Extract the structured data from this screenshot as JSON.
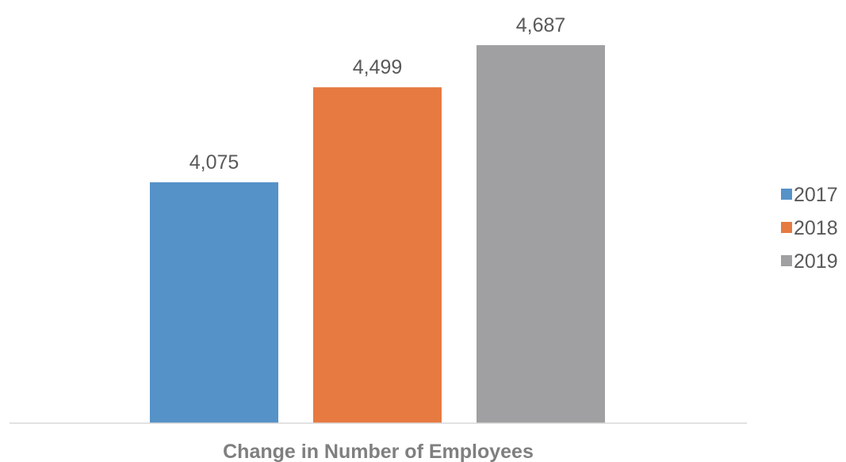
{
  "chart_data": {
    "type": "bar",
    "categories": [
      "Change in Number of Employees"
    ],
    "series": [
      {
        "name": "2017",
        "values": [
          4075
        ],
        "label": "4,075",
        "color": "#5592c8"
      },
      {
        "name": "2018",
        "values": [
          4499
        ],
        "label": "4,499",
        "color": "#e67a41"
      },
      {
        "name": "2019",
        "values": [
          4687
        ],
        "label": "4,687",
        "color": "#a0a0a3"
      }
    ],
    "title": "",
    "xlabel": "",
    "ylabel": "",
    "ylim": [
      3000,
      4800
    ],
    "grid": false,
    "legend_position": "right",
    "axis_color": "#d9d9d9",
    "label_color": "#595959",
    "category_color": "#7f7f7f"
  }
}
